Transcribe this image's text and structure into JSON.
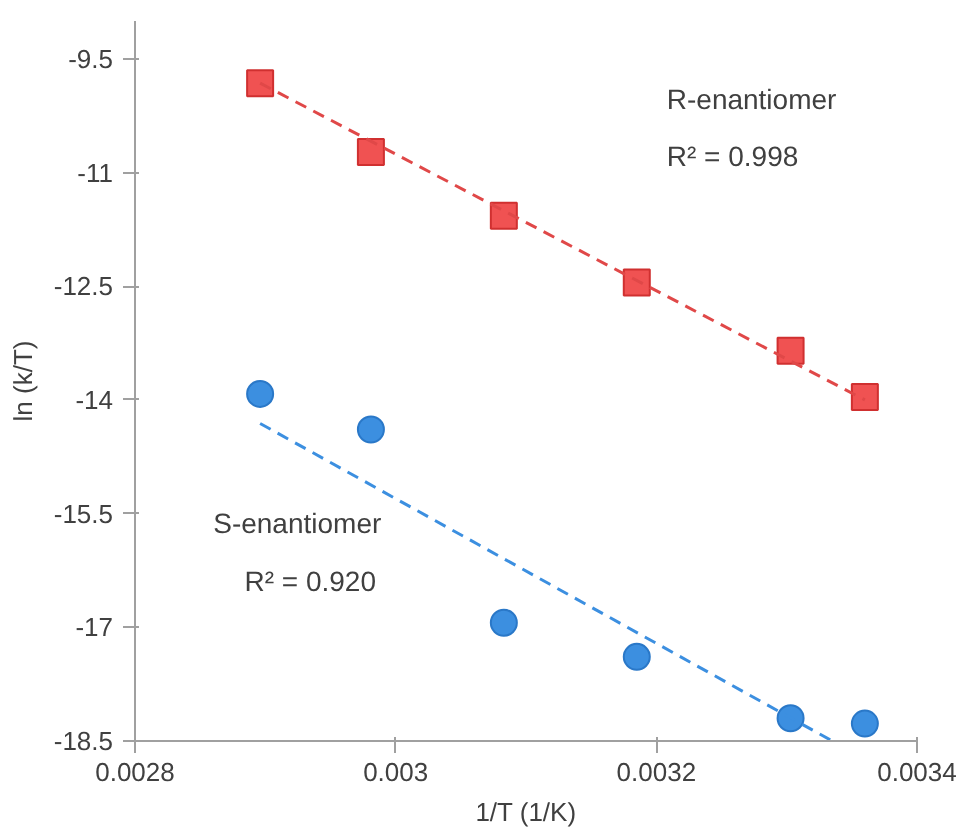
{
  "chart_data": {
    "type": "scatter",
    "xlabel": "1/T (1/K)",
    "ylabel": "ln (k/T)",
    "xlim": [
      0.0028,
      0.0034
    ],
    "xticks": [
      0.0028,
      0.003,
      0.0032,
      0.0034
    ],
    "ylim": [
      -18.5,
      -9.0
    ],
    "yticks": [
      -9.5,
      -11,
      -12.5,
      -14,
      -15.5,
      -17,
      -18.5
    ],
    "grid": false,
    "x": [
      0.002896,
      0.002981,
      0.003083,
      0.003185,
      0.003303,
      0.00336
    ],
    "series": [
      {
        "color": "#f05252",
        "marker": "square",
        "values": [
          -9.82,
          -10.73,
          -11.57,
          -12.45,
          -13.35,
          -13.96
        ]
      },
      {
        "color": "#3c8fe0",
        "marker": "circle",
        "values": [
          -13.92,
          -14.39,
          -16.94,
          -17.39,
          -18.2,
          -18.27
        ]
      },
      {
        "type": "line",
        "color": "#e04848",
        "line_style": "dashed",
        "x": [
          0.002896,
          0.00336
        ],
        "values": [
          -9.82,
          -14.0
        ]
      },
      {
        "type": "line",
        "color": "#3c8fe0",
        "line_style": "dashed",
        "x": [
          0.002896,
          0.003335
        ],
        "values": [
          -14.31,
          -18.5
        ]
      }
    ],
    "annotations": [
      "R-enantiomer",
      "R² = 0.998",
      "S-enantiomer",
      "R² = 0.920"
    ]
  }
}
